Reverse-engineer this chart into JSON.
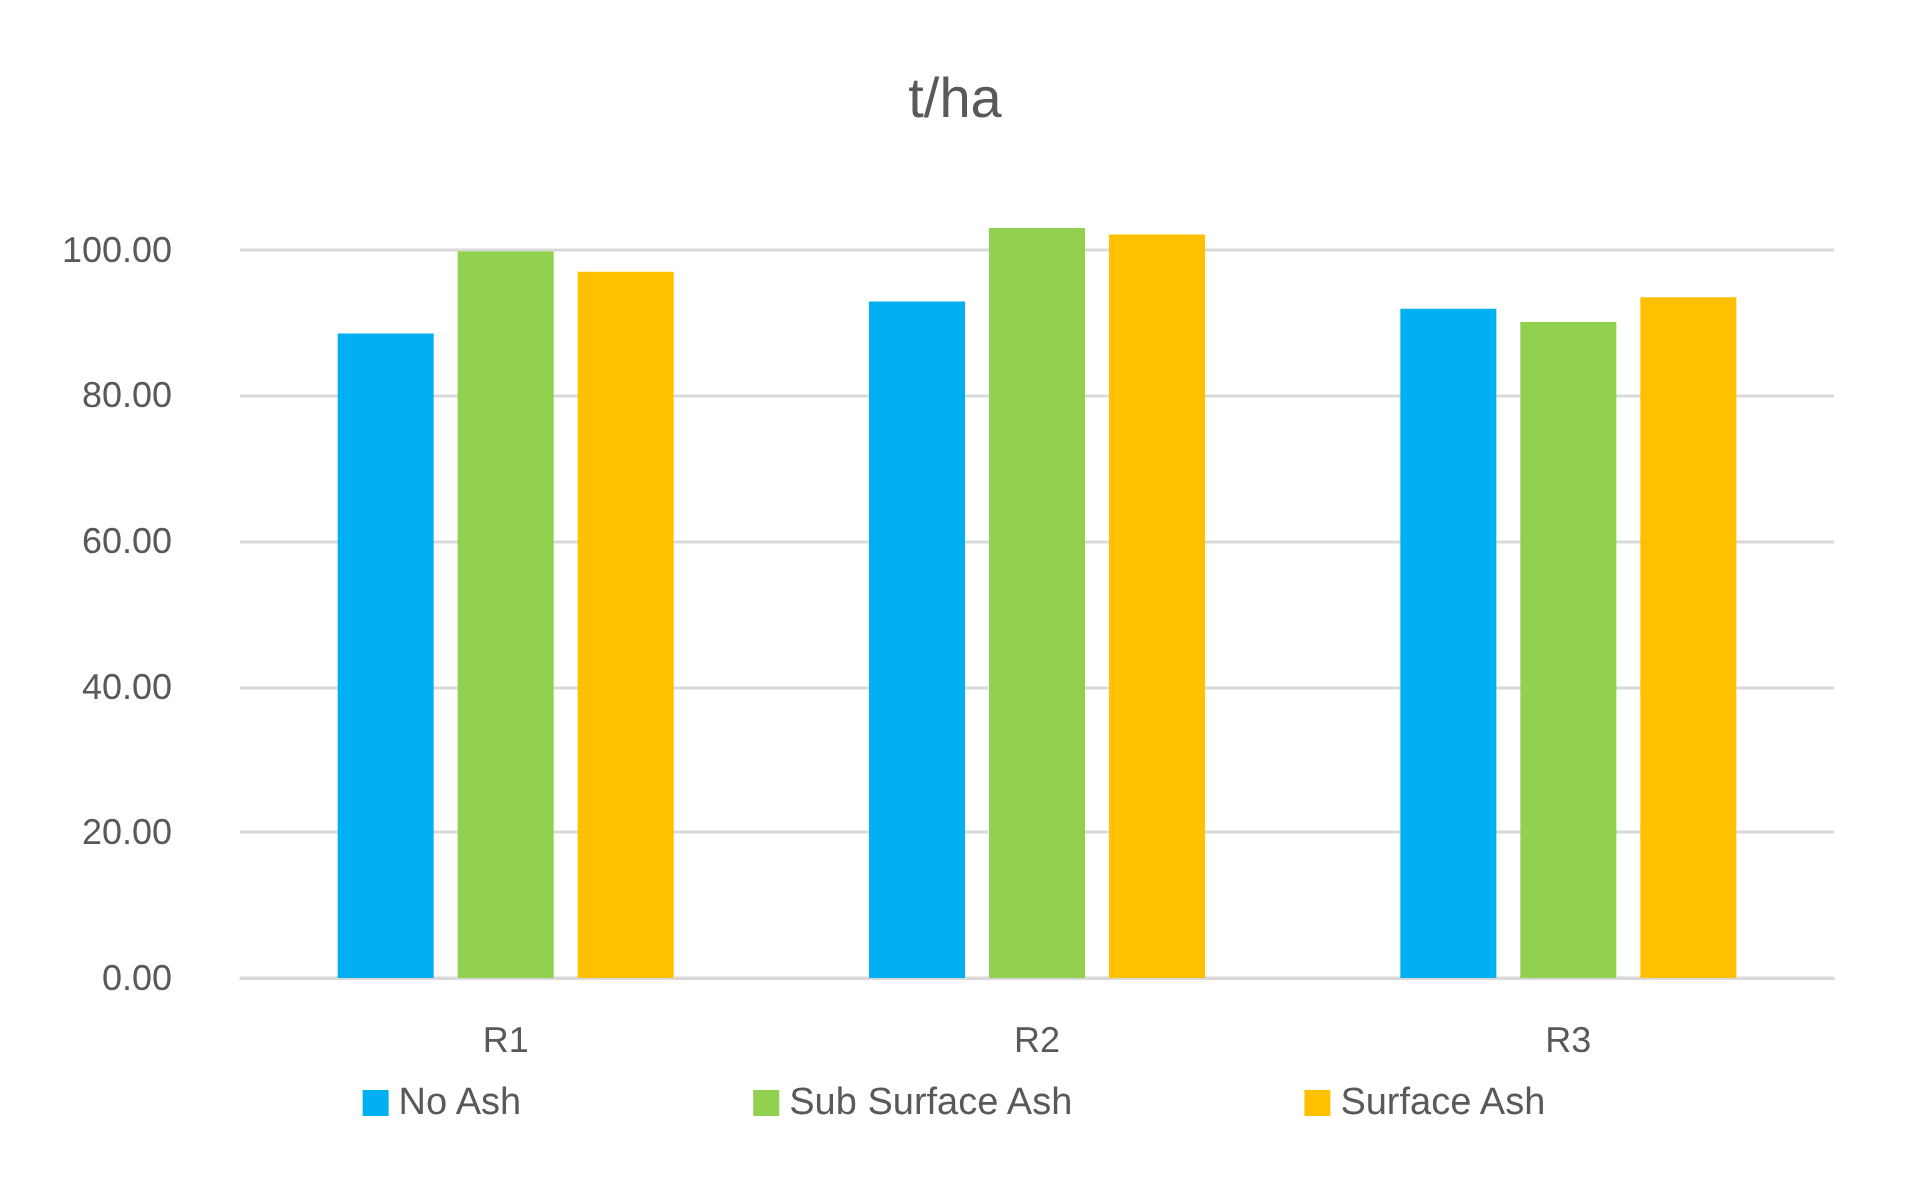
{
  "chart_data": {
    "type": "bar",
    "title": "t/ha",
    "categories": [
      "R1",
      "R2",
      "R3"
    ],
    "series": [
      {
        "name": "No Ash",
        "color": "#00b0f0",
        "values": [
          88.5,
          92.9,
          91.9
        ]
      },
      {
        "name": "Sub Surface Ash",
        "color": "#92d050",
        "values": [
          99.8,
          103.0,
          90.1
        ]
      },
      {
        "name": "Surface Ash",
        "color": "#ffc000",
        "values": [
          97.0,
          102.1,
          93.5
        ]
      }
    ],
    "ylim": [
      0,
      103
    ],
    "yticks": [
      {
        "value": 0,
        "label": "0.00"
      },
      {
        "value": 20,
        "label": "20.00"
      },
      {
        "value": 40,
        "label": "40.00"
      },
      {
        "value": 60,
        "label": "60.00"
      },
      {
        "value": 80,
        "label": "80.00"
      },
      {
        "value": 100,
        "label": "100.00"
      }
    ],
    "grid": "y",
    "legend": "bottom"
  }
}
